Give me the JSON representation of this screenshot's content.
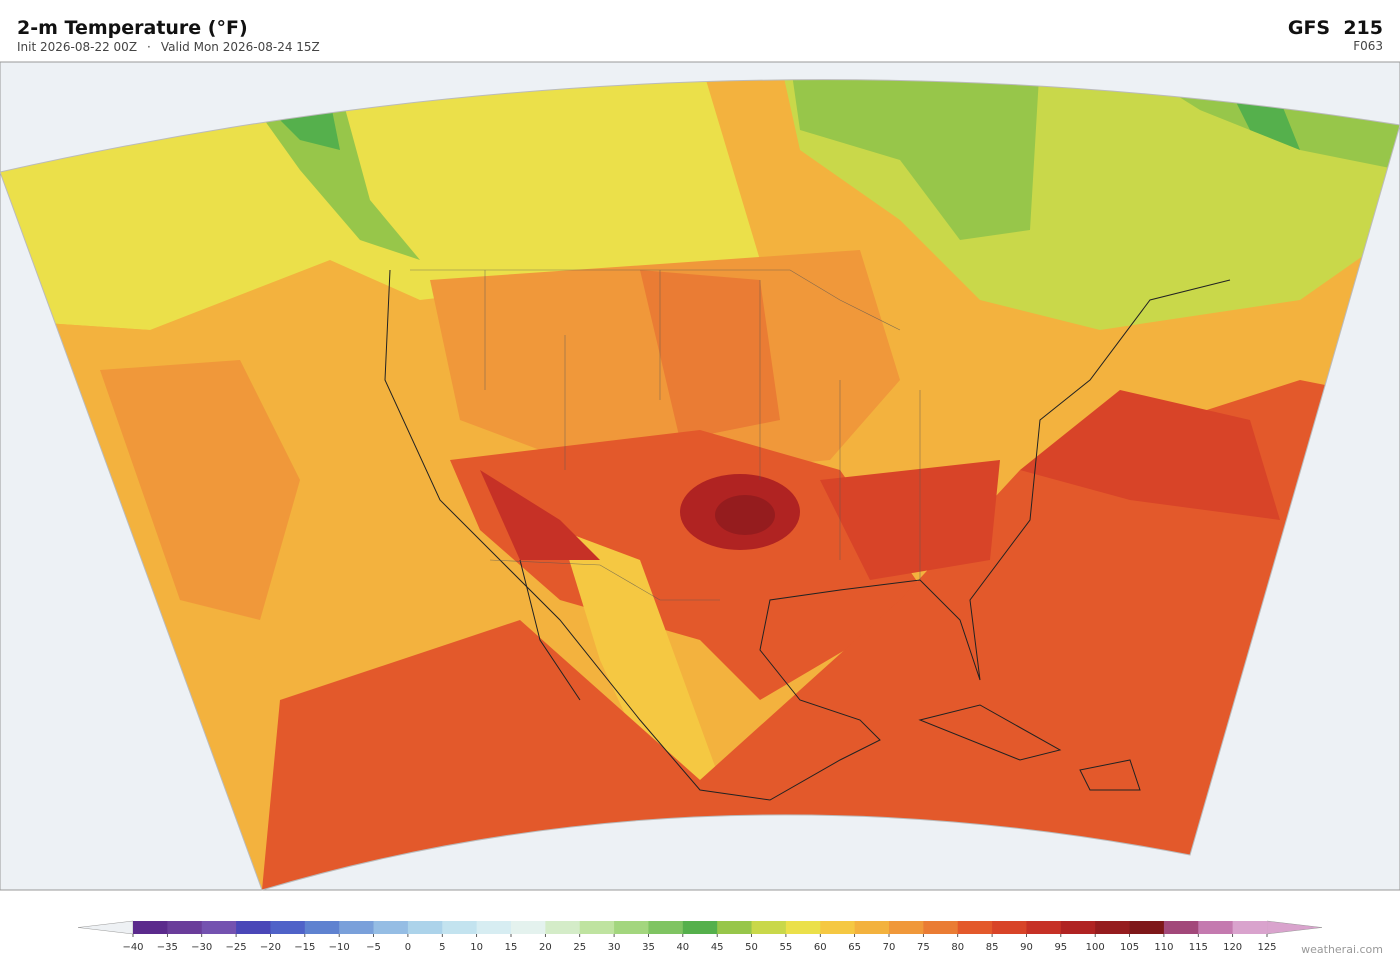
{
  "header": {
    "title": "2-m Temperature  (°F)",
    "init": "Init 2026-08-22 00Z",
    "separator": "·",
    "valid": "Valid Mon 2026-08-24 15Z",
    "model": "GFS  215",
    "forecast_hour": "F063"
  },
  "colorbar": {
    "ticks": [
      {
        "value": -40,
        "label": "−40"
      },
      {
        "value": -35,
        "label": "−35"
      },
      {
        "value": -30,
        "label": "−30"
      },
      {
        "value": -25,
        "label": "−25"
      },
      {
        "value": -20,
        "label": "−20"
      },
      {
        "value": -15,
        "label": "−15"
      },
      {
        "value": -10,
        "label": "−10"
      },
      {
        "value": -5,
        "label": "−5"
      },
      0,
      5,
      10,
      15,
      20,
      25,
      30,
      35,
      40,
      45,
      50,
      55,
      60,
      65,
      70,
      75,
      80,
      85,
      90,
      95,
      100,
      105,
      110,
      115,
      120,
      125
    ],
    "colors": [
      "#5b2a8c",
      "#6a3d9a",
      "#7452b0",
      "#4a47b8",
      "#4f62c8",
      "#5f82d0",
      "#7aa0da",
      "#95bde4",
      "#acd3ea",
      "#c3e3ef",
      "#d7edf2",
      "#e4f2ee",
      "#d4ecc8",
      "#bfe3a0",
      "#a3d67e",
      "#7fc462",
      "#55b04c",
      "#97c64a",
      "#c9d84a",
      "#ebe04a",
      "#f5c842",
      "#f3b23e",
      "#f0983a",
      "#ea7c34",
      "#e3592b",
      "#d84428",
      "#c63126",
      "#b02322",
      "#951c1e",
      "#7e1719",
      "#a2487a",
      "#c47aaf",
      "#d9a3cd"
    ],
    "under_color": "#eef1f4",
    "over_color": "#d9a3cd"
  },
  "watermark": "weatherai.com"
}
